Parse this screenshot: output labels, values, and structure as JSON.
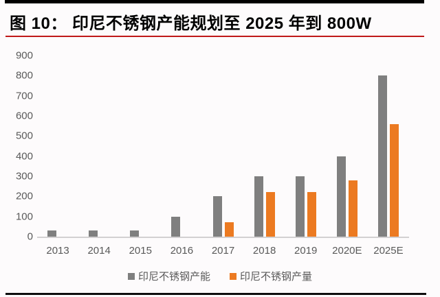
{
  "title": "图 10：  印尼不锈钢产能规划至 2025 年到 800W",
  "colors": {
    "capacity": "#7f7f7f",
    "production": "#ec7a21",
    "title_text": "#000000",
    "red_rule": "#c01818",
    "black_rule": "#0d0d0d",
    "axis_text": "#595959",
    "axis_line": "#d2d0d1",
    "background": "#fdfbfc"
  },
  "chart_data": {
    "type": "bar",
    "categories": [
      "2013",
      "2014",
      "2015",
      "2016",
      "2017",
      "2018",
      "2019",
      "2020E",
      "2025E"
    ],
    "series": [
      {
        "key": "capacity",
        "name": "印尼不锈钢产能",
        "values": [
          30,
          30,
          30,
          100,
          200,
          300,
          300,
          400,
          800
        ]
      },
      {
        "key": "production",
        "name": "印尼不锈钢产量",
        "values": [
          0,
          0,
          0,
          0,
          70,
          220,
          220,
          280,
          560
        ]
      }
    ],
    "title": "印尼不锈钢产能规划至 2025 年到 800W",
    "xlabel": "",
    "ylabel": "",
    "ylim": [
      0,
      900
    ],
    "yticks": [
      900,
      800,
      700,
      600,
      500,
      400,
      300,
      200,
      100,
      0
    ],
    "grid": false,
    "legend_position": "bottom"
  }
}
